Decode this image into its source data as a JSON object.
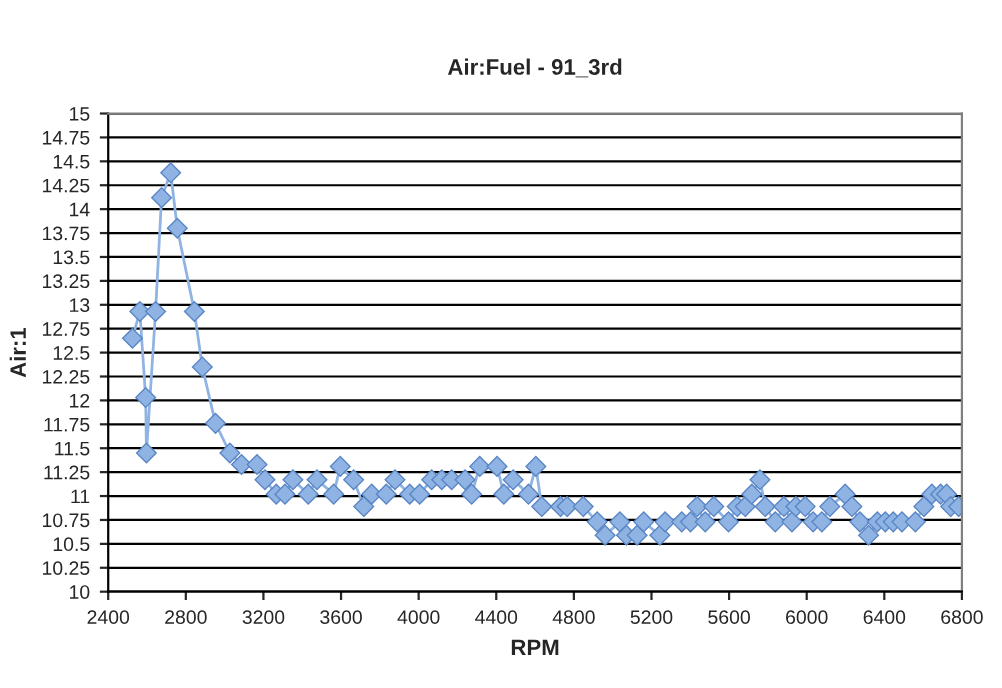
{
  "chart_data": {
    "type": "line",
    "title": "Air:Fuel - 91_3rd",
    "xlabel": "RPM",
    "ylabel": "Air:1",
    "x": [
      2525,
      2563,
      2593,
      2597,
      2644,
      2675,
      2722,
      2756,
      2844,
      2885,
      2953,
      3027,
      3087,
      3167,
      3208,
      3266,
      3311,
      3352,
      3431,
      3476,
      3562,
      3596,
      3665,
      3717,
      3758,
      3833,
      3878,
      3954,
      4005,
      4067,
      4119,
      4170,
      4239,
      4273,
      4315,
      4404,
      4439,
      4487,
      4566,
      4604,
      4634,
      4731,
      4765,
      4848,
      4920,
      4961,
      5037,
      5071,
      5126,
      5160,
      5243,
      5270,
      5356,
      5401,
      5435,
      5477,
      5521,
      5597,
      5642,
      5683,
      5717,
      5759,
      5786,
      5838,
      5882,
      5924,
      5944,
      5992,
      6033,
      6078,
      6119,
      6198,
      6233,
      6274,
      6319,
      6364,
      6405,
      6446,
      6491,
      6560,
      6604,
      6645,
      6690,
      6721,
      6742,
      6783
    ],
    "series": [
      {
        "color": "#8fb4e3",
        "values": [
          12.65,
          12.93,
          12.03,
          11.45,
          12.93,
          14.12,
          14.38,
          13.8,
          12.93,
          12.35,
          11.76,
          11.45,
          11.33,
          11.33,
          11.17,
          11.02,
          11.02,
          11.17,
          11.02,
          11.17,
          11.02,
          11.31,
          11.17,
          10.89,
          11.02,
          11.02,
          11.17,
          11.02,
          11.02,
          11.17,
          11.17,
          11.17,
          11.17,
          11.02,
          11.31,
          11.31,
          11.02,
          11.17,
          11.02,
          11.31,
          10.89,
          10.89,
          10.89,
          10.89,
          10.73,
          10.59,
          10.73,
          10.59,
          10.59,
          10.73,
          10.59,
          10.73,
          10.73,
          10.73,
          10.89,
          10.73,
          10.89,
          10.73,
          10.89,
          10.89,
          11.02,
          11.17,
          10.89,
          10.73,
          10.89,
          10.73,
          10.89,
          10.89,
          10.73,
          10.73,
          10.89,
          11.02,
          10.89,
          10.73,
          10.59,
          10.73,
          10.73,
          10.73,
          10.73,
          10.73,
          10.89,
          11.02,
          11.02,
          11.02,
          10.89,
          10.89
        ]
      }
    ],
    "xlim": [
      2400,
      6800
    ],
    "xticks": [
      2400,
      2800,
      3200,
      3600,
      4000,
      4400,
      4800,
      5200,
      5600,
      6000,
      6400,
      6800
    ],
    "ylim": [
      10,
      15
    ],
    "yticks": [
      10,
      10.25,
      10.5,
      10.75,
      11,
      11.25,
      11.5,
      11.75,
      12,
      12.25,
      12.5,
      12.75,
      13,
      13.25,
      13.5,
      13.75,
      14,
      14.25,
      14.5,
      14.75,
      15
    ],
    "grid": "y",
    "marker": "diamond",
    "line_style": "solid",
    "legend": false
  }
}
